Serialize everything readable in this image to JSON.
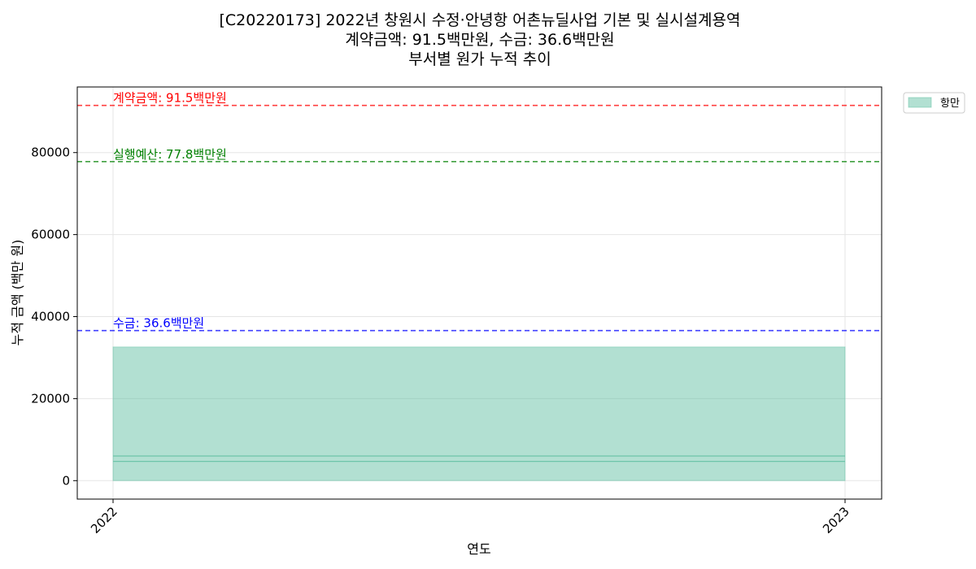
{
  "chart_data": {
    "type": "area",
    "title_lines": [
      "[C20220173] 2022년 창원시 수정·안녕항 어촌뉴딜사업 기본 및 실시설계용역",
      "계약금액: 91.5백만원, 수금: 36.6백만원",
      "부서별 원가 누적 추이"
    ],
    "xlabel": "연도",
    "ylabel": "누적 금액 (백만 원)",
    "x": [
      "2022",
      "2023"
    ],
    "series": [
      {
        "name": "항만",
        "values": [
          32600,
          32600
        ],
        "color": "#66c2a5"
      }
    ],
    "inner_lines": [
      4700,
      6000
    ],
    "ylim": [
      -4500,
      96000
    ],
    "yticks": [
      0,
      20000,
      40000,
      60000,
      80000
    ],
    "reference_lines": [
      {
        "label": "계약금액: 91.5백만원",
        "value": 91500,
        "color": "#ff0000"
      },
      {
        "label": "실행예산: 77.8백만원",
        "value": 77800,
        "color": "#008000"
      },
      {
        "label": "수금: 36.6백만원",
        "value": 36600,
        "color": "#0000ff"
      }
    ],
    "legend_position": "upper-right-outside",
    "grid": true
  }
}
